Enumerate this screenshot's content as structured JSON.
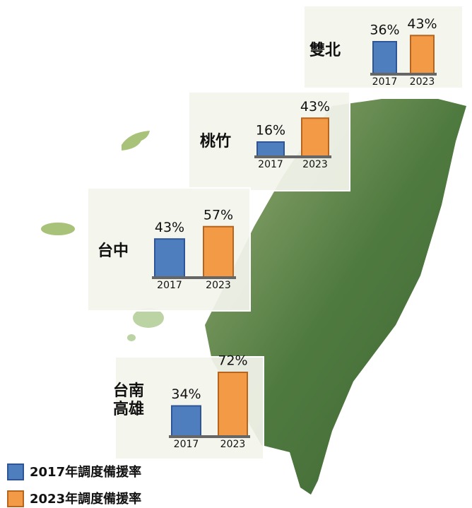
{
  "chart_data": [
    {
      "type": "bar",
      "title": [
        "雙北"
      ],
      "categories": [
        "2017",
        "2023"
      ],
      "values": [
        36,
        43
      ],
      "value_labels": [
        "36%",
        "43%"
      ]
    },
    {
      "type": "bar",
      "title": [
        "桃竹"
      ],
      "categories": [
        "2017",
        "2023"
      ],
      "values": [
        16,
        43
      ],
      "value_labels": [
        "16%",
        "43%"
      ]
    },
    {
      "type": "bar",
      "title": [
        "台中"
      ],
      "categories": [
        "2017",
        "2023"
      ],
      "values": [
        43,
        57
      ],
      "value_labels": [
        "43%",
        "57%"
      ]
    },
    {
      "type": "bar",
      "title": [
        "台南",
        "高雄"
      ],
      "categories": [
        "2017",
        "2023"
      ],
      "values": [
        34,
        72
      ],
      "value_labels": [
        "34%",
        "72%"
      ]
    }
  ],
  "legend": [
    {
      "label": "2017年調度備援率",
      "color": "#4f7ebf"
    },
    {
      "label": "2023年調度備援率",
      "color": "#f39a47"
    }
  ]
}
